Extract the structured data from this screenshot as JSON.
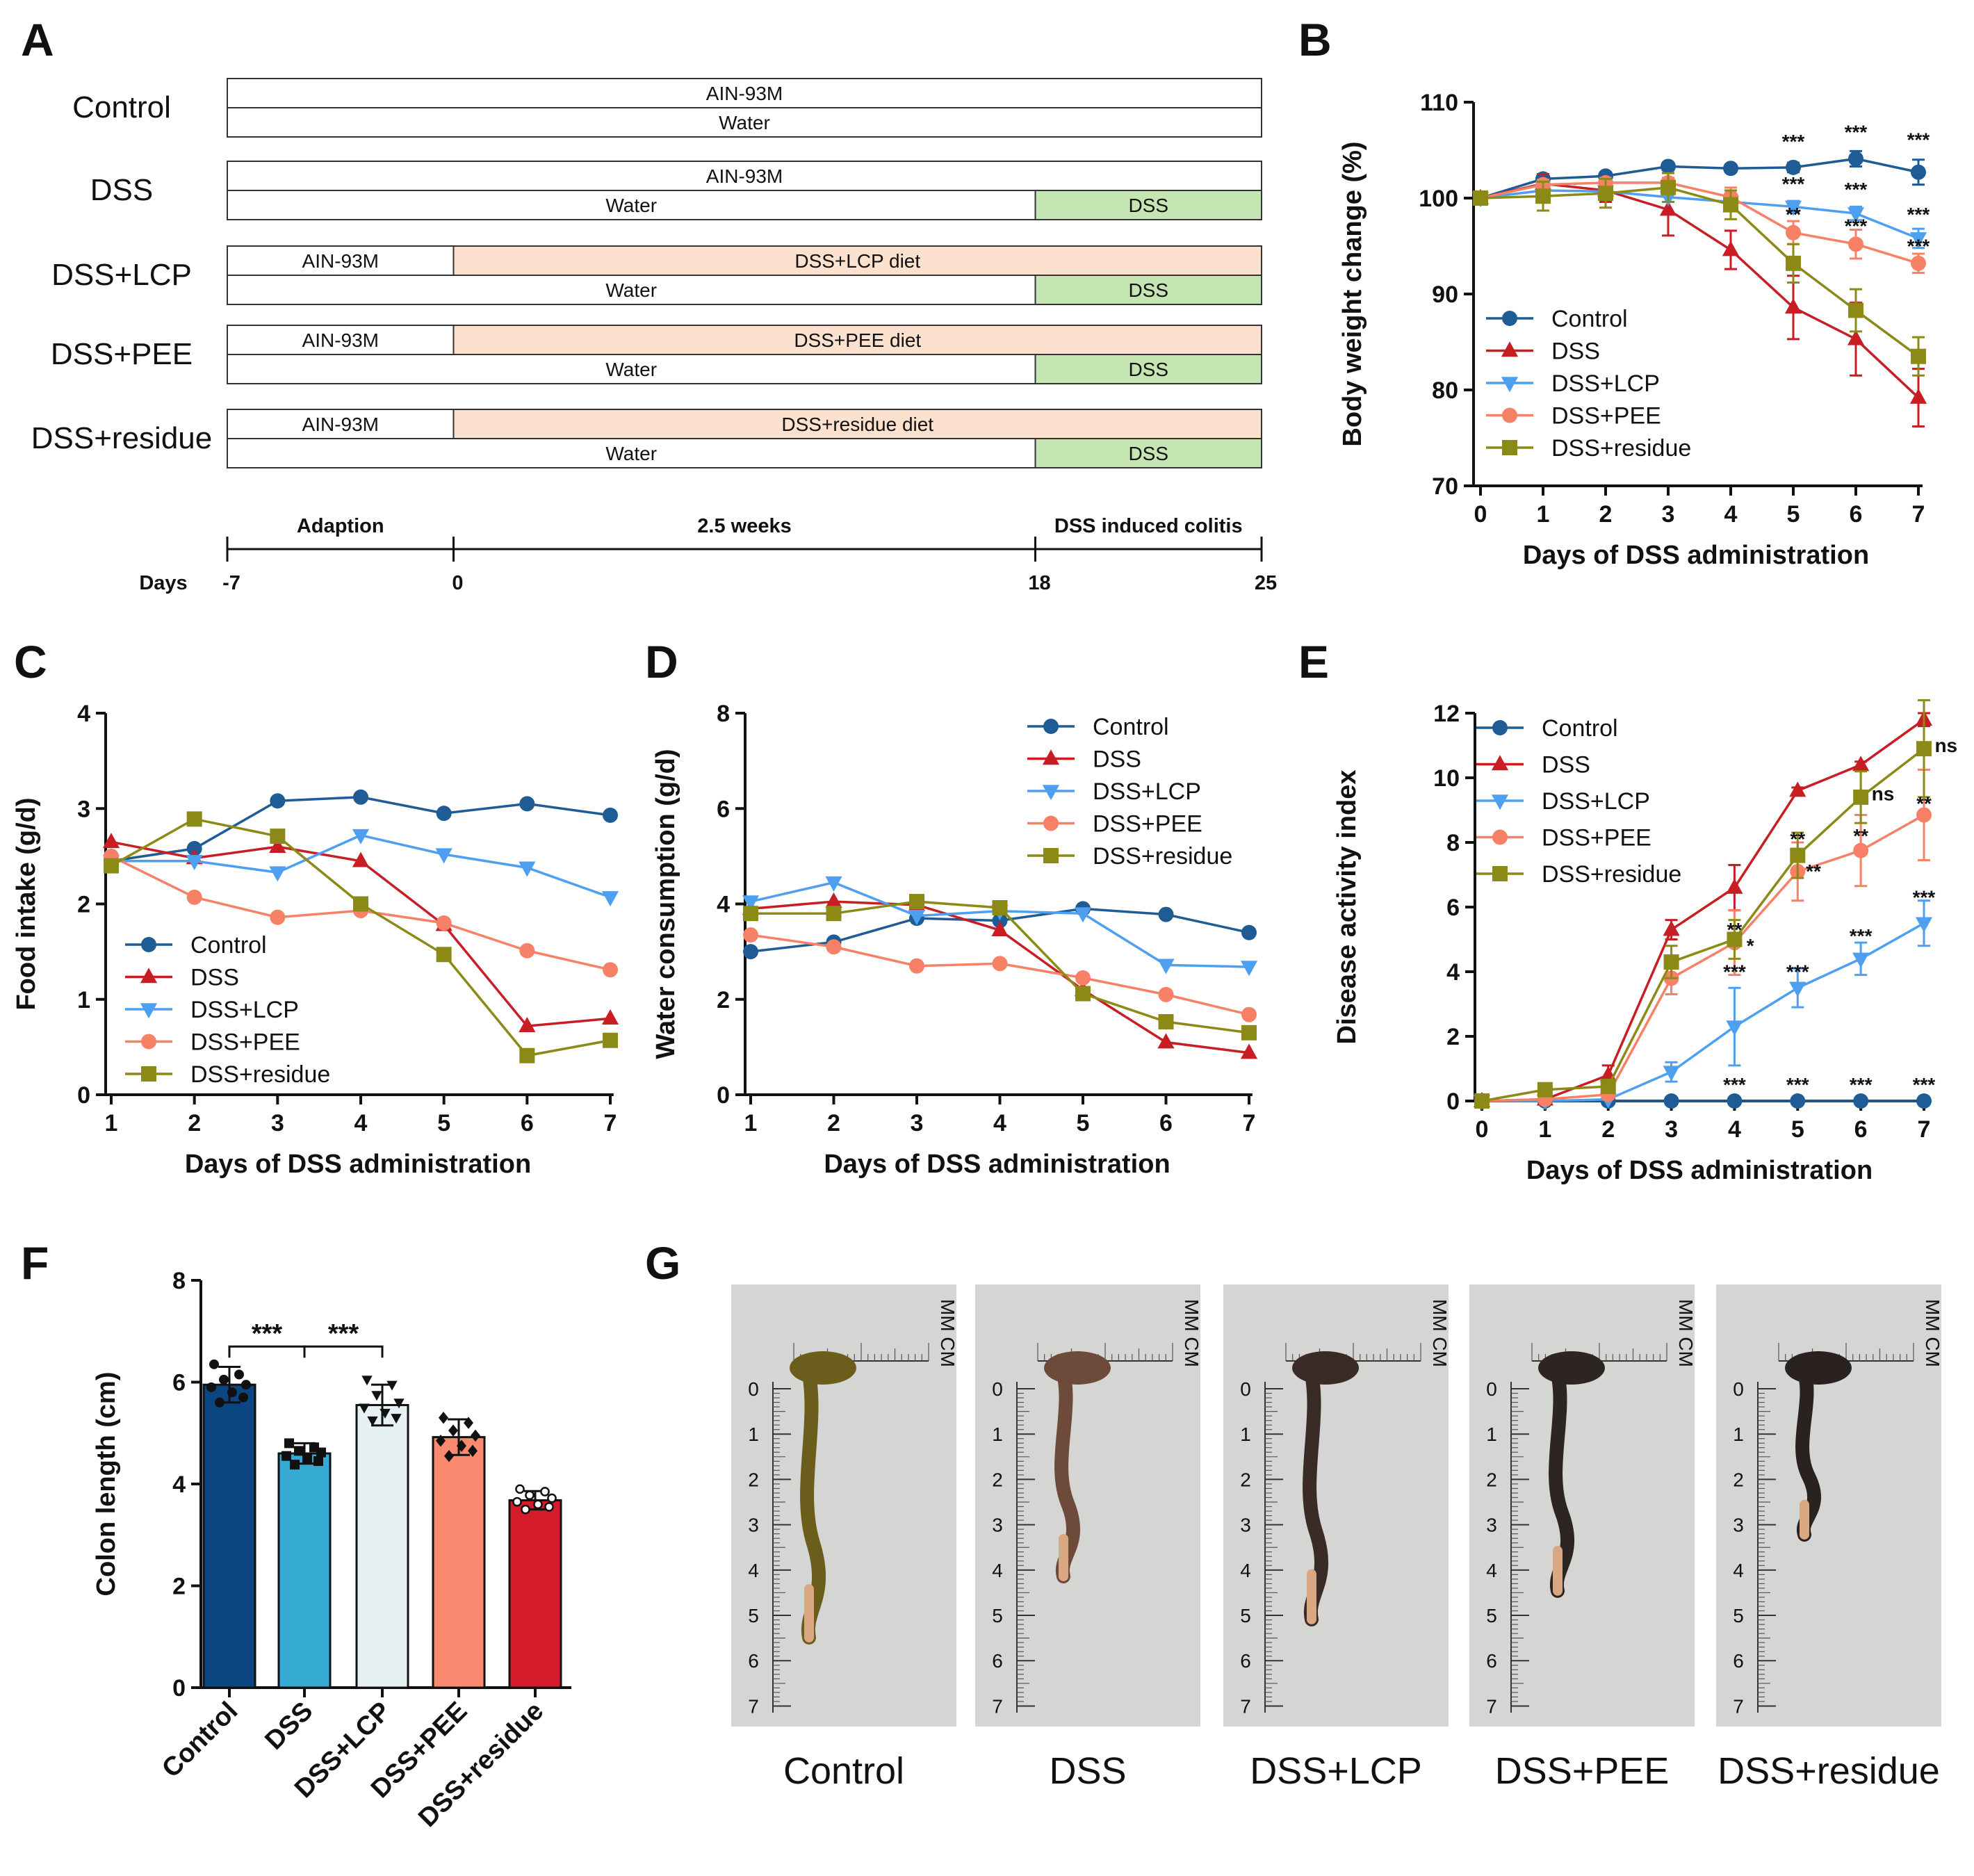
{
  "panel_labels": [
    "A",
    "B",
    "C",
    "D",
    "E",
    "F",
    "G"
  ],
  "colors": {
    "Control": "#1f5b94",
    "DSS": "#c91d24",
    "DSS+LCP": "#4e9ff0",
    "DSS+PEE": "#f78166",
    "DSS+residue": "#8c8a16",
    "diet_box": "#fde1cf",
    "dss_box": "#c5e6b3"
  },
  "design": {
    "groups": [
      {
        "name": "Control",
        "diet": [
          {
            "label": "AIN-93M",
            "type": "plain",
            "from": -7,
            "to": 25
          }
        ],
        "water": [
          {
            "label": "Water",
            "type": "plain",
            "from": -7,
            "to": 25
          }
        ]
      },
      {
        "name": "DSS",
        "diet": [
          {
            "label": "AIN-93M",
            "type": "plain",
            "from": -7,
            "to": 25
          }
        ],
        "water": [
          {
            "label": "Water",
            "type": "plain",
            "from": -7,
            "to": 18
          },
          {
            "label": "DSS",
            "type": "dss",
            "from": 18,
            "to": 25
          }
        ]
      },
      {
        "name": "DSS+LCP",
        "diet": [
          {
            "label": "AIN-93M",
            "type": "plain",
            "from": -7,
            "to": 0
          },
          {
            "label": "DSS+LCP diet",
            "type": "diet",
            "from": 0,
            "to": 25
          }
        ],
        "water": [
          {
            "label": "Water",
            "type": "plain",
            "from": -7,
            "to": 18
          },
          {
            "label": "DSS",
            "type": "dss",
            "from": 18,
            "to": 25
          }
        ]
      },
      {
        "name": "DSS+PEE",
        "diet": [
          {
            "label": "AIN-93M",
            "type": "plain",
            "from": -7,
            "to": 0
          },
          {
            "label": "DSS+PEE diet",
            "type": "diet",
            "from": 0,
            "to": 25
          }
        ],
        "water": [
          {
            "label": "Water",
            "type": "plain",
            "from": -7,
            "to": 18
          },
          {
            "label": "DSS",
            "type": "dss",
            "from": 18,
            "to": 25
          }
        ]
      },
      {
        "name": "DSS+residue",
        "diet": [
          {
            "label": "AIN-93M",
            "type": "plain",
            "from": -7,
            "to": 0
          },
          {
            "label": "DSS+residue diet",
            "type": "diet",
            "from": 0,
            "to": 25
          }
        ],
        "water": [
          {
            "label": "Water",
            "type": "plain",
            "from": -7,
            "to": 18
          },
          {
            "label": "DSS",
            "type": "dss",
            "from": 18,
            "to": 25
          }
        ]
      }
    ],
    "phases": [
      {
        "label": "Adaption",
        "from": -7,
        "to": 0
      },
      {
        "label": "2.5 weeks",
        "from": 0,
        "to": 18
      },
      {
        "label": "DSS induced colitis",
        "from": 18,
        "to": 25
      }
    ],
    "days_label": "Days",
    "day_ticks": [
      -7,
      0,
      18,
      25
    ]
  },
  "chart_data": [
    {
      "panel": "B",
      "type": "line",
      "xlabel": "Days of DSS administration",
      "ylabel": "Body weight change (%)",
      "x": [
        0,
        1,
        2,
        3,
        4,
        5,
        6,
        7
      ],
      "ylim": [
        70,
        110
      ],
      "yticks": [
        70,
        80,
        90,
        100,
        110
      ],
      "legend": "bottom-left",
      "series": [
        {
          "name": "Control",
          "marker": "circle",
          "values": [
            100,
            102,
            102.3,
            103.3,
            103.1,
            103.2,
            104.1,
            102.7
          ],
          "err": [
            0,
            0.4,
            0.4,
            0.4,
            0.4,
            0.5,
            0.8,
            1.3
          ]
        },
        {
          "name": "DSS",
          "marker": "triangle-up",
          "values": [
            100,
            101.5,
            100.8,
            98.8,
            94.6,
            88.6,
            85.3,
            79.2
          ],
          "err": [
            0,
            1,
            1.2,
            2.7,
            2,
            3.3,
            3.8,
            3
          ]
        },
        {
          "name": "DSS+LCP",
          "marker": "triangle-down",
          "values": [
            100,
            100.8,
            100.7,
            100.1,
            99.6,
            99.1,
            98.4,
            95.8
          ],
          "err": [
            0,
            0.5,
            0.5,
            0.5,
            0.5,
            0.6,
            0.7,
            1
          ]
        },
        {
          "name": "DSS+PEE",
          "marker": "circle",
          "values": [
            100,
            101.4,
            101.6,
            101.6,
            100.1,
            96.4,
            95.2,
            93.2
          ],
          "err": [
            0,
            0.5,
            0.5,
            0.5,
            1,
            1.2,
            1.5,
            1
          ]
        },
        {
          "name": "DSS+residue",
          "marker": "square",
          "values": [
            100,
            100.2,
            100.5,
            101.1,
            99.3,
            93.2,
            88.3,
            83.5
          ],
          "err": [
            0,
            1.5,
            1.5,
            1.5,
            1.5,
            2,
            2.2,
            2
          ]
        }
      ],
      "annotations": [
        {
          "text": "***",
          "x": 5,
          "y": 105.2
        },
        {
          "text": "***",
          "x": 6,
          "y": 106.2
        },
        {
          "text": "***",
          "x": 7,
          "y": 105.4
        },
        {
          "text": "***",
          "x": 5,
          "y": 100.8
        },
        {
          "text": "***",
          "x": 6,
          "y": 100.2
        },
        {
          "text": "***",
          "x": 7,
          "y": 97.6
        },
        {
          "text": "**",
          "x": 5,
          "y": 97.6
        },
        {
          "text": "***",
          "x": 6,
          "y": 96.4
        },
        {
          "text": "***",
          "x": 7,
          "y": 94.3
        }
      ]
    },
    {
      "panel": "C",
      "type": "line",
      "xlabel": "Days of DSS administration",
      "ylabel": "Food intake (g/d)",
      "x": [
        1,
        2,
        3,
        4,
        5,
        6,
        7
      ],
      "ylim": [
        0,
        4
      ],
      "yticks": [
        0,
        1,
        2,
        3,
        4
      ],
      "legend": "bottom-left",
      "series": [
        {
          "name": "Control",
          "marker": "circle",
          "values": [
            2.45,
            2.58,
            3.08,
            3.12,
            2.95,
            3.05,
            2.93
          ]
        },
        {
          "name": "DSS",
          "marker": "triangle-up",
          "values": [
            2.65,
            2.48,
            2.6,
            2.45,
            1.78,
            0.72,
            0.8
          ]
        },
        {
          "name": "DSS+LCP",
          "marker": "triangle-down",
          "values": [
            2.45,
            2.45,
            2.33,
            2.72,
            2.52,
            2.38,
            2.07
          ]
        },
        {
          "name": "DSS+PEE",
          "marker": "circle",
          "values": [
            2.5,
            2.07,
            1.86,
            1.93,
            1.8,
            1.51,
            1.31
          ]
        },
        {
          "name": "DSS+residue",
          "marker": "square",
          "values": [
            2.4,
            2.89,
            2.71,
            2.0,
            1.47,
            0.41,
            0.57
          ]
        }
      ]
    },
    {
      "panel": "D",
      "type": "line",
      "xlabel": "Days of DSS administration",
      "ylabel": "Water consumption (g/d)",
      "x": [
        1,
        2,
        3,
        4,
        5,
        6,
        7
      ],
      "ylim": [
        0,
        8
      ],
      "yticks": [
        0,
        2,
        4,
        6,
        8
      ],
      "legend": "top-right",
      "series": [
        {
          "name": "Control",
          "marker": "circle",
          "values": [
            3.0,
            3.2,
            3.7,
            3.65,
            3.9,
            3.78,
            3.4
          ]
        },
        {
          "name": "DSS",
          "marker": "triangle-up",
          "values": [
            3.9,
            4.05,
            3.98,
            3.45,
            2.2,
            1.1,
            0.88
          ]
        },
        {
          "name": "DSS+LCP",
          "marker": "triangle-down",
          "values": [
            4.05,
            4.45,
            3.75,
            3.85,
            3.8,
            2.72,
            2.68
          ]
        },
        {
          "name": "DSS+PEE",
          "marker": "circle",
          "values": [
            3.35,
            3.1,
            2.7,
            2.75,
            2.45,
            2.1,
            1.68
          ]
        },
        {
          "name": "DSS+residue",
          "marker": "square",
          "values": [
            3.8,
            3.8,
            4.05,
            3.92,
            2.12,
            1.53,
            1.3
          ]
        }
      ]
    },
    {
      "panel": "E",
      "type": "line",
      "xlabel": "Days of DSS administration",
      "ylabel": "Disease activity index",
      "x": [
        0,
        1,
        2,
        3,
        4,
        5,
        6,
        7
      ],
      "ylim": [
        0,
        12
      ],
      "yticks": [
        0,
        2,
        4,
        6,
        8,
        10,
        12
      ],
      "legend": "top-left",
      "series": [
        {
          "name": "Control",
          "marker": "circle",
          "values": [
            0,
            0,
            0,
            0,
            0,
            0,
            0,
            0
          ],
          "err": [
            0,
            0,
            0,
            0,
            0,
            0,
            0,
            0
          ]
        },
        {
          "name": "DSS",
          "marker": "triangle-up",
          "values": [
            0,
            0.05,
            0.8,
            5.3,
            6.6,
            9.6,
            10.4,
            11.8
          ],
          "err": [
            0,
            0,
            0.3,
            0.3,
            0.7,
            0.1,
            0.1,
            0.2
          ]
        },
        {
          "name": "DSS+LCP",
          "marker": "triangle-down",
          "values": [
            0,
            0,
            0.05,
            0.9,
            2.3,
            3.5,
            4.4,
            5.5
          ],
          "err": [
            0,
            0,
            0,
            0.3,
            1.2,
            0.6,
            0.5,
            0.7
          ]
        },
        {
          "name": "DSS+PEE",
          "marker": "circle",
          "values": [
            0,
            0.05,
            0.2,
            3.8,
            4.9,
            7.1,
            7.75,
            8.85
          ],
          "err": [
            0,
            0,
            0.1,
            0.5,
            1.0,
            0.9,
            1.1,
            1.4
          ]
        },
        {
          "name": "DSS+residue",
          "marker": "square",
          "values": [
            0,
            0.35,
            0.45,
            4.3,
            5.0,
            7.6,
            9.4,
            10.9
          ],
          "err": [
            0,
            0.1,
            0.1,
            0.5,
            0.6,
            0.7,
            0.8,
            1.5
          ]
        }
      ],
      "annotations": [
        {
          "text": "***",
          "x": 4,
          "y": 0.3
        },
        {
          "text": "***",
          "x": 5,
          "y": 0.3
        },
        {
          "text": "***",
          "x": 6,
          "y": 0.3
        },
        {
          "text": "***",
          "x": 7,
          "y": 0.3
        },
        {
          "text": "***",
          "x": 4,
          "y": 3.8
        },
        {
          "text": "***",
          "x": 5,
          "y": 3.8
        },
        {
          "text": "***",
          "x": 6,
          "y": 4.9
        },
        {
          "text": "***",
          "x": 7,
          "y": 6.1
        },
        {
          "text": "**",
          "x": 4,
          "y": 5.1
        },
        {
          "text": "*",
          "x": 4.25,
          "y": 4.6
        },
        {
          "text": "**",
          "x": 5,
          "y": 7.9
        },
        {
          "text": "**",
          "x": 5.25,
          "y": 6.9
        },
        {
          "text": "**",
          "x": 6,
          "y": 8.0
        },
        {
          "text": "**",
          "x": 7,
          "y": 9.0
        },
        {
          "text": "ns",
          "x": 6.35,
          "y": 9.3
        },
        {
          "text": "ns",
          "x": 7.35,
          "y": 10.8
        }
      ]
    },
    {
      "panel": "F",
      "type": "bar",
      "ylabel": "Colon length (cm)",
      "categories": [
        "Control",
        "DSS",
        "DSS+LCP",
        "DSS+PEE",
        "DSS+residue"
      ],
      "values": [
        5.95,
        4.6,
        5.55,
        4.92,
        3.68
      ],
      "err": [
        0.35,
        0.2,
        0.4,
        0.35,
        0.18
      ],
      "bar_colors": [
        "#0b4582",
        "#35aad3",
        "#e6f1f4",
        "#f98a70",
        "#d41c2c"
      ],
      "points": [
        [
          6.35,
          6.15,
          6.05,
          5.95,
          5.9,
          5.8,
          5.7,
          5.6
        ],
        [
          4.8,
          4.72,
          4.65,
          4.62,
          4.55,
          4.5,
          4.45,
          4.38
        ],
        [
          6.05,
          5.95,
          5.75,
          5.6,
          5.5,
          5.4,
          5.3,
          5.25
        ],
        [
          5.3,
          5.2,
          5.05,
          4.95,
          4.85,
          4.75,
          4.65,
          4.55
        ],
        [
          3.9,
          3.85,
          3.78,
          3.72,
          3.65,
          3.6,
          3.55,
          3.5
        ]
      ],
      "point_markers": [
        "circle",
        "square",
        "triangle-down",
        "diamond",
        "circle-open"
      ],
      "ylim": [
        0,
        8
      ],
      "yticks": [
        0,
        2,
        4,
        6,
        8
      ],
      "brackets": [
        {
          "from": 0,
          "to": 1,
          "text": "***"
        },
        {
          "from": 1,
          "to": 2,
          "text": "***"
        }
      ]
    }
  ],
  "photos": {
    "labels": [
      "Control",
      "DSS",
      "DSS+LCP",
      "DSS+PEE",
      "DSS+residue"
    ],
    "ruler_numbers": [
      "0",
      "1",
      "2",
      "3",
      "4",
      "5",
      "6",
      "7"
    ],
    "ruler_unit": "MM CM"
  }
}
